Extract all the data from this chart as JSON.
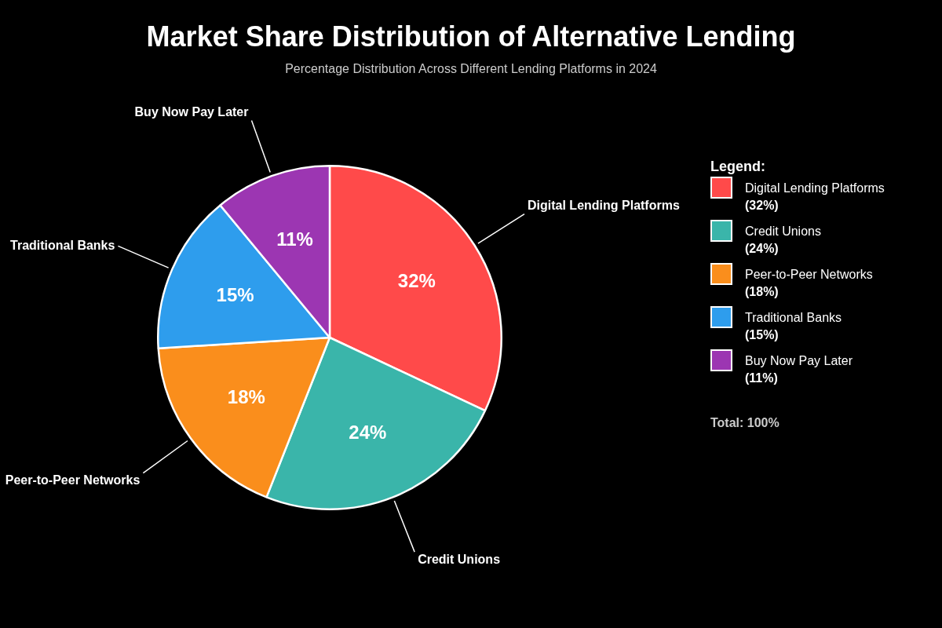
{
  "chart_data": {
    "type": "pie",
    "title": "Market Share Distribution of Alternative Lending",
    "subtitle": "Percentage Distribution Across Different Lending Platforms in 2024",
    "categories": [
      "Digital Lending Platforms",
      "Credit Unions",
      "Peer-to-Peer Networks",
      "Traditional Banks",
      "Buy Now Pay Later"
    ],
    "values": [
      32,
      24,
      18,
      15,
      11
    ],
    "colors": [
      "#ff4a4a",
      "#3ab5aa",
      "#fa8e1c",
      "#2e9ded",
      "#9c36b2"
    ],
    "value_labels": [
      "32%",
      "24%",
      "18%",
      "15%",
      "11%"
    ],
    "legend": "right",
    "legend_title": "Legend:",
    "annotations": [
      "(32%)",
      "(24%)",
      "(18%)",
      "(15%)",
      "(11%)",
      "Total: 100%"
    ]
  }
}
